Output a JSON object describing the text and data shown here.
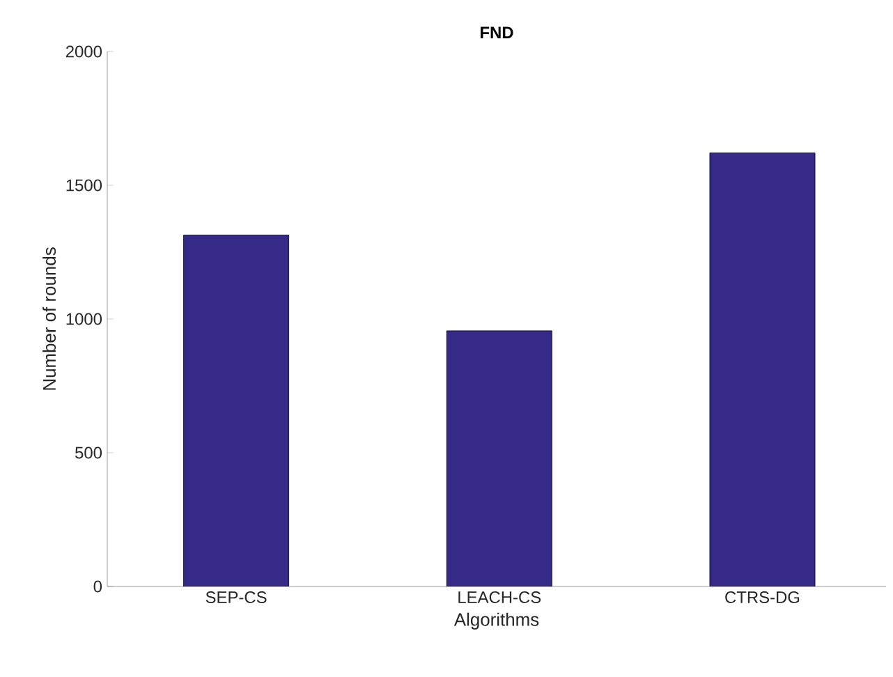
{
  "chart_data": {
    "type": "bar",
    "title": "FND",
    "xlabel": "Algorithms",
    "ylabel": "Number  of  rounds",
    "categories": [
      "SEP-CS",
      "LEACH-CS",
      "CTRS-DG"
    ],
    "values": [
      1314,
      956,
      1621
    ],
    "color": "#352a87",
    "ylim": [
      0,
      2000
    ],
    "yticks": [
      0,
      500,
      1000,
      1500,
      2000
    ],
    "grid": false
  }
}
